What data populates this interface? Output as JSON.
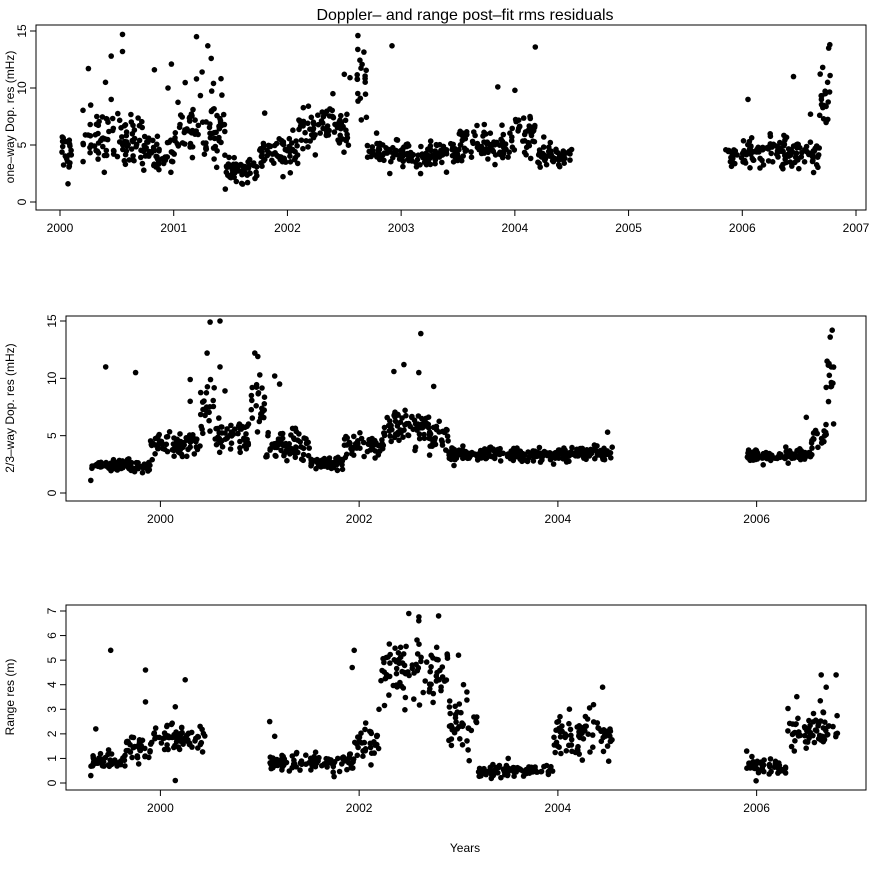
{
  "chart_data": [
    {
      "type": "scatter",
      "title": "Doppler– and range post–fit rms residuals",
      "xlabel": "",
      "ylabel": "one–way Dop. res (mHz)",
      "xlim": [
        2000.0,
        2007.0
      ],
      "ylim": [
        0,
        15
      ],
      "xticks": [
        2000,
        2001,
        2002,
        2003,
        2004,
        2005,
        2006,
        2007
      ],
      "yticks": [
        0,
        5,
        10,
        15
      ],
      "grid": false,
      "clusters": [
        {
          "x_range": [
            2000.0,
            2000.1
          ],
          "mean": 4.5,
          "spread": 1.5,
          "outliers": [
            [
              2000.02,
              5.7
            ],
            [
              2000.05,
              5.3
            ],
            [
              2000.07,
              1.6
            ]
          ]
        },
        {
          "x_range": [
            2000.2,
            2000.75
          ],
          "mean": 5.5,
          "spread": 2.0,
          "outliers": [
            [
              2000.25,
              11.7
            ],
            [
              2000.45,
              12.8
            ],
            [
              2000.55,
              14.7
            ],
            [
              2000.55,
              13.2
            ],
            [
              2000.4,
              10.5
            ],
            [
              2000.45,
              9.0
            ],
            [
              2000.27,
              8.5
            ]
          ]
        },
        {
          "x_range": [
            2000.75,
            2001.0
          ],
          "mean": 4.2,
          "spread": 1.2,
          "outliers": [
            [
              2000.83,
              11.6
            ],
            [
              2000.98,
              12.1
            ],
            [
              2000.95,
              10.0
            ]
          ]
        },
        {
          "x_range": [
            2001.0,
            2001.45
          ],
          "mean": 6.5,
          "spread": 2.5,
          "outliers": [
            [
              2001.2,
              14.5
            ],
            [
              2001.3,
              13.7
            ],
            [
              2001.33,
              12.6
            ],
            [
              2001.25,
              11.4
            ],
            [
              2001.35,
              10.4
            ],
            [
              2001.2,
              10.8
            ]
          ]
        },
        {
          "x_range": [
            2001.45,
            2001.75
          ],
          "mean": 2.8,
          "spread": 0.8,
          "outliers": [
            [
              2001.55,
              1.8
            ],
            [
              2001.65,
              1.7
            ]
          ]
        },
        {
          "x_range": [
            2001.75,
            2002.1
          ],
          "mean": 4.3,
          "spread": 1.2,
          "outliers": [
            [
              2001.8,
              7.8
            ]
          ]
        },
        {
          "x_range": [
            2002.1,
            2002.55
          ],
          "mean": 6.3,
          "spread": 1.5,
          "outliers": [
            [
              2002.4,
              9.5
            ],
            [
              2002.5,
              11.2
            ],
            [
              2002.55,
              10.9
            ]
          ]
        },
        {
          "x_range": [
            2002.6,
            2002.7
          ],
          "mean": 10.5,
          "spread": 2.0,
          "outliers": [
            [
              2002.62,
              14.6
            ],
            [
              2002.65,
              7.2
            ]
          ]
        },
        {
          "x_range": [
            2002.7,
            2003.5
          ],
          "mean": 4.2,
          "spread": 1.0,
          "outliers": [
            [
              2002.92,
              13.7
            ],
            [
              2002.9,
              2.5
            ]
          ]
        },
        {
          "x_range": [
            2003.5,
            2003.95
          ],
          "mean": 5.0,
          "spread": 1.2,
          "outliers": [
            [
              2003.85,
              10.1
            ]
          ]
        },
        {
          "x_range": [
            2003.95,
            2004.2
          ],
          "mean": 6.0,
          "spread": 1.5,
          "outliers": [
            [
              2004.18,
              13.6
            ],
            [
              2004.0,
              9.8
            ]
          ]
        },
        {
          "x_range": [
            2004.2,
            2004.5
          ],
          "mean": 4.0,
          "spread": 0.9,
          "outliers": []
        },
        {
          "x_range": [
            2005.85,
            2006.5
          ],
          "mean": 4.3,
          "spread": 1.1,
          "outliers": [
            [
              2006.05,
              9.0
            ],
            [
              2006.45,
              11.0
            ]
          ]
        },
        {
          "x_range": [
            2006.5,
            2006.68
          ],
          "mean": 4.3,
          "spread": 1.0,
          "outliers": [
            [
              2006.6,
              7.7
            ]
          ]
        },
        {
          "x_range": [
            2006.68,
            2006.78
          ],
          "mean": 9.0,
          "spread": 2.5,
          "outliers": [
            [
              2006.77,
              13.8
            ],
            [
              2006.76,
              13.5
            ],
            [
              2006.75,
              10.5
            ],
            [
              2006.73,
              9.5
            ]
          ]
        }
      ]
    },
    {
      "type": "scatter",
      "title": "",
      "xlabel": "",
      "ylabel": "2/3–way Dop. res (mHz)",
      "xlim": [
        1999.05,
        2007.0
      ],
      "ylim": [
        0,
        15
      ],
      "xticks": [
        2000,
        2002,
        2004,
        2006
      ],
      "yticks": [
        0,
        5,
        10,
        15
      ],
      "grid": false,
      "clusters": [
        {
          "x_range": [
            1999.3,
            1999.9
          ],
          "mean": 2.4,
          "spread": 0.4,
          "outliers": [
            [
              1999.3,
              1.1
            ],
            [
              1999.45,
              11.0
            ],
            [
              1999.75,
              10.5
            ]
          ]
        },
        {
          "x_range": [
            1999.9,
            2000.4
          ],
          "mean": 4.0,
          "spread": 1.0,
          "outliers": [
            [
              2000.3,
              9.9
            ],
            [
              2000.3,
              8.0
            ]
          ]
        },
        {
          "x_range": [
            2000.4,
            2000.55
          ],
          "mean": 7.5,
          "spread": 2.5,
          "outliers": [
            [
              2000.47,
              12.2
            ],
            [
              2000.5,
              14.9
            ],
            [
              2000.6,
              15.0
            ]
          ]
        },
        {
          "x_range": [
            2000.55,
            2000.9
          ],
          "mean": 5.0,
          "spread": 1.2,
          "outliers": [
            [
              2000.6,
              11.0
            ],
            [
              2000.65,
              8.9
            ]
          ]
        },
        {
          "x_range": [
            2000.9,
            2001.05
          ],
          "mean": 7.5,
          "spread": 2.0,
          "outliers": [
            [
              2000.95,
              12.2
            ],
            [
              2000.98,
              11.9
            ],
            [
              2001.0,
              10.3
            ]
          ]
        },
        {
          "x_range": [
            2001.05,
            2001.5
          ],
          "mean": 4.0,
          "spread": 1.2,
          "outliers": [
            [
              2001.15,
              10.2
            ],
            [
              2001.2,
              9.5
            ]
          ]
        },
        {
          "x_range": [
            2001.5,
            2001.85
          ],
          "mean": 2.6,
          "spread": 0.4,
          "outliers": []
        },
        {
          "x_range": [
            2001.85,
            2002.25
          ],
          "mean": 4.2,
          "spread": 0.8,
          "outliers": []
        },
        {
          "x_range": [
            2002.25,
            2002.7
          ],
          "mean": 5.6,
          "spread": 1.2,
          "outliers": [
            [
              2002.35,
              10.6
            ],
            [
              2002.45,
              11.2
            ],
            [
              2002.6,
              10.5
            ],
            [
              2002.62,
              13.9
            ],
            [
              2002.75,
              9.3
            ]
          ]
        },
        {
          "x_range": [
            2002.7,
            2002.9
          ],
          "mean": 5.0,
          "spread": 1.0,
          "outliers": []
        },
        {
          "x_range": [
            2002.9,
            2004.55
          ],
          "mean": 3.4,
          "spread": 0.5,
          "outliers": [
            [
              2004.5,
              5.3
            ]
          ]
        },
        {
          "x_range": [
            2005.9,
            2006.55
          ],
          "mean": 3.2,
          "spread": 0.5,
          "outliers": []
        },
        {
          "x_range": [
            2006.55,
            2006.7
          ],
          "mean": 4.8,
          "spread": 1.0,
          "outliers": [
            [
              2006.5,
              6.6
            ]
          ]
        },
        {
          "x_range": [
            2006.7,
            2006.78
          ],
          "mean": 9.5,
          "spread": 2.5,
          "outliers": [
            [
              2006.76,
              14.2
            ],
            [
              2006.74,
              13.6
            ],
            [
              2006.75,
              11.0
            ]
          ]
        }
      ]
    },
    {
      "type": "scatter",
      "title": "",
      "xlabel": "Years",
      "ylabel": "Range res (m)",
      "xlim": [
        1999.05,
        2007.0
      ],
      "ylim": [
        0,
        7
      ],
      "xticks": [
        2000,
        2002,
        2004,
        2006
      ],
      "yticks": [
        0,
        1,
        2,
        3,
        4,
        5,
        6,
        7
      ],
      "grid": false,
      "clusters": [
        {
          "x_range": [
            1999.3,
            1999.65
          ],
          "mean": 0.9,
          "spread": 0.3,
          "outliers": [
            [
              1999.35,
              2.2
            ],
            [
              1999.5,
              5.4
            ],
            [
              1999.3,
              0.3
            ]
          ]
        },
        {
          "x_range": [
            1999.65,
            1999.9
          ],
          "mean": 1.4,
          "spread": 0.5,
          "outliers": [
            [
              1999.85,
              3.3
            ]
          ]
        },
        {
          "x_range": [
            1999.9,
            2000.45
          ],
          "mean": 1.8,
          "spread": 0.5,
          "outliers": [
            [
              1999.85,
              4.6
            ],
            [
              2000.15,
              3.1
            ],
            [
              2000.25,
              4.2
            ],
            [
              2000.15,
              0.1
            ]
          ]
        },
        {
          "x_range": [
            2001.1,
            2001.6
          ],
          "mean": 0.8,
          "spread": 0.3,
          "outliers": [
            [
              2001.1,
              2.5
            ],
            [
              2001.15,
              1.9
            ]
          ]
        },
        {
          "x_range": [
            2001.6,
            2001.95
          ],
          "mean": 0.8,
          "spread": 0.3,
          "outliers": []
        },
        {
          "x_range": [
            2001.95,
            2002.2
          ],
          "mean": 1.5,
          "spread": 0.6,
          "outliers": [
            [
              2001.95,
              5.4
            ],
            [
              2001.93,
              4.7
            ],
            [
              2002.2,
              3.0
            ]
          ]
        },
        {
          "x_range": [
            2002.2,
            2002.9
          ],
          "mean": 4.5,
          "spread": 1.2,
          "outliers": [
            [
              2002.5,
              6.9
            ],
            [
              2002.8,
              6.8
            ],
            [
              2002.6,
              6.6
            ]
          ]
        },
        {
          "x_range": [
            2002.9,
            2003.2
          ],
          "mean": 2.5,
          "spread": 0.8,
          "outliers": [
            [
              2003.0,
              5.2
            ],
            [
              2003.05,
              4.0
            ]
          ]
        },
        {
          "x_range": [
            2003.2,
            2003.95
          ],
          "mean": 0.5,
          "spread": 0.2,
          "outliers": [
            [
              2003.5,
              1.0
            ]
          ]
        },
        {
          "x_range": [
            2003.95,
            2004.55
          ],
          "mean": 2.0,
          "spread": 0.7,
          "outliers": [
            [
              2004.45,
              3.9
            ],
            [
              2004.5,
              1.5
            ]
          ]
        },
        {
          "x_range": [
            2005.9,
            2006.3
          ],
          "mean": 0.7,
          "spread": 0.3,
          "outliers": [
            [
              2005.9,
              1.3
            ]
          ]
        },
        {
          "x_range": [
            2006.3,
            2006.82
          ],
          "mean": 2.2,
          "spread": 0.8,
          "outliers": [
            [
              2006.65,
              4.4
            ],
            [
              2006.8,
              4.4
            ],
            [
              2006.7,
              3.9
            ],
            [
              2006.8,
              2.0
            ]
          ]
        }
      ]
    }
  ]
}
